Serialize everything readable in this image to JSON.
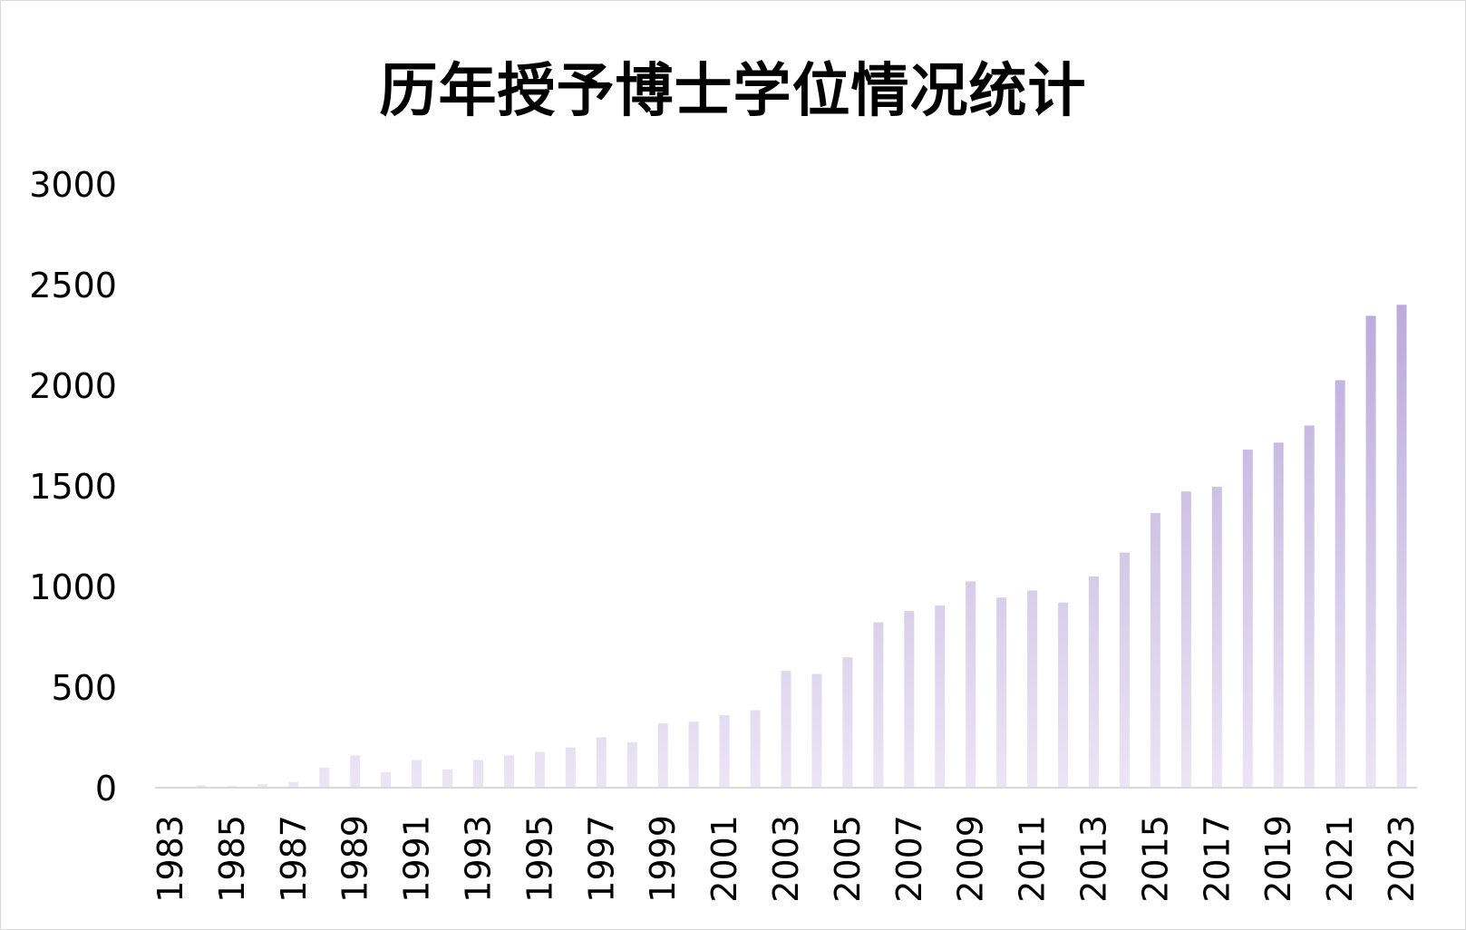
{
  "chart_data": {
    "type": "bar",
    "title": "历年授予博士学位情况统计",
    "xlabel": "",
    "ylabel": "",
    "ylim": [
      0,
      3000
    ],
    "yticks": [
      0,
      500,
      1000,
      1500,
      2000,
      2500,
      3000
    ],
    "grid": false,
    "legend": "none",
    "bar_color_top": "#b09bd6",
    "bar_color_bottom": "#ebe5f5",
    "categories": [
      "1983",
      "1984",
      "1985",
      "1986",
      "1987",
      "1988",
      "1989",
      "1990",
      "1991",
      "1992",
      "1993",
      "1994",
      "1995",
      "1996",
      "1997",
      "1998",
      "1999",
      "2000",
      "2001",
      "2002",
      "2003",
      "2004",
      "2005",
      "2006",
      "2007",
      "2008",
      "2009",
      "2010",
      "2011",
      "2012",
      "2013",
      "2014",
      "2015",
      "2016",
      "2017",
      "2018",
      "2019",
      "2020",
      "2021",
      "2022",
      "2023"
    ],
    "tick_labels": [
      "1983",
      "1985",
      "1987",
      "1989",
      "1991",
      "1993",
      "1995",
      "1997",
      "1999",
      "2001",
      "2003",
      "2005",
      "2007",
      "2009",
      "2011",
      "2013",
      "2015",
      "2017",
      "2019",
      "2021",
      "2023"
    ],
    "values": [
      2,
      12,
      8,
      18,
      28,
      100,
      160,
      78,
      138,
      90,
      138,
      160,
      178,
      200,
      250,
      225,
      320,
      328,
      360,
      385,
      580,
      565,
      648,
      822,
      878,
      905,
      1025,
      945,
      980,
      920,
      1050,
      1168,
      1365,
      1472,
      1495,
      1680,
      1715,
      1800,
      2025,
      2345,
      2400
    ]
  }
}
